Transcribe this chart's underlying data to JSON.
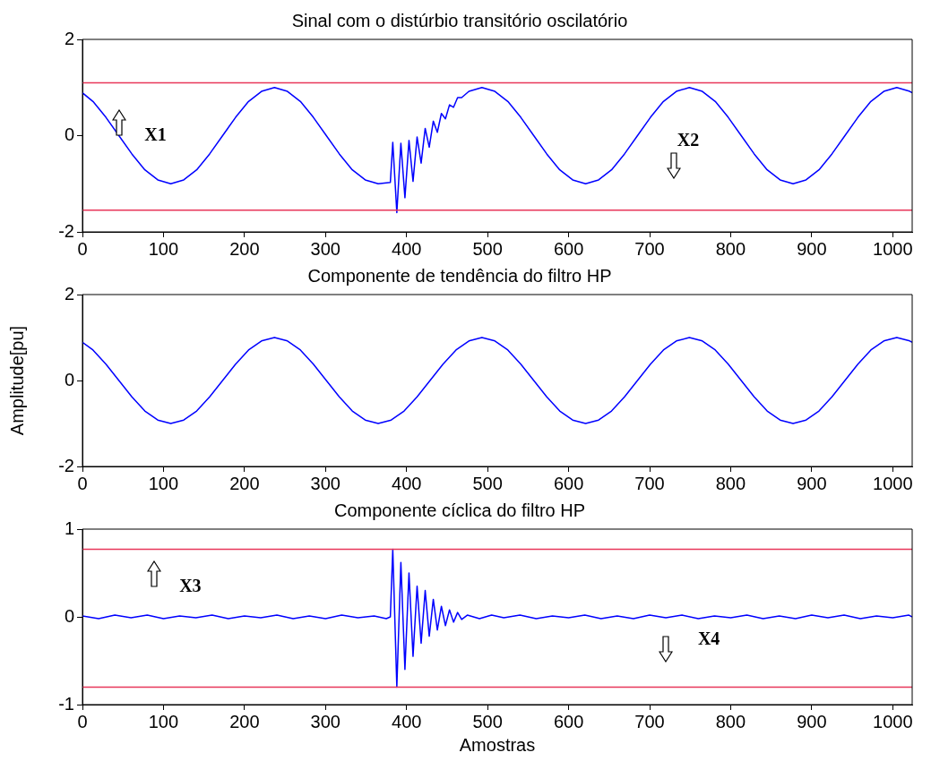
{
  "chart_data": [
    {
      "type": "line",
      "title": "Sinal com o distúrbio transitório oscilatório",
      "xlim": [
        0,
        1024
      ],
      "xticks": [
        0,
        100,
        200,
        300,
        400,
        500,
        600,
        700,
        800,
        900,
        1000
      ],
      "ylim": [
        -2,
        2
      ],
      "yticks": [
        -2,
        0,
        2
      ],
      "series": [
        {
          "color": "#0000ff",
          "x": [
            0,
            13,
            29,
            45,
            61,
            77,
            93,
            109,
            125,
            141,
            157,
            173,
            189,
            205,
            221,
            237,
            253,
            269,
            285,
            301,
            317,
            333,
            349,
            365,
            380,
            383,
            388,
            393,
            398,
            403,
            408,
            413,
            418,
            423,
            428,
            433,
            438,
            443,
            448,
            453,
            458,
            463,
            468,
            477,
            493,
            509,
            525,
            541,
            557,
            573,
            589,
            605,
            621,
            637,
            653,
            669,
            685,
            701,
            717,
            733,
            749,
            765,
            781,
            797,
            813,
            829,
            845,
            861,
            877,
            893,
            909,
            925,
            941,
            957,
            973,
            989,
            1005,
            1021,
            1024
          ],
          "values": [
            0.89,
            0.71,
            0.38,
            0,
            -0.38,
            -0.71,
            -0.92,
            -1,
            -0.92,
            -0.71,
            -0.38,
            0,
            0.38,
            0.71,
            0.92,
            1,
            0.92,
            0.71,
            0.38,
            0,
            -0.38,
            -0.71,
            -0.92,
            -1,
            -0.97,
            -0.14,
            -1.6,
            -0.16,
            -1.29,
            -0.1,
            -0.95,
            -0.03,
            -0.57,
            0.15,
            -0.24,
            0.3,
            0.07,
            0.46,
            0.35,
            0.64,
            0.59,
            0.79,
            0.79,
            0.92,
            1,
            0.92,
            0.71,
            0.38,
            0,
            -0.38,
            -0.71,
            -0.92,
            -1,
            -0.92,
            -0.71,
            -0.38,
            0,
            0.38,
            0.71,
            0.92,
            1,
            0.92,
            0.71,
            0.38,
            0,
            -0.38,
            -0.71,
            -0.92,
            -1,
            -0.92,
            -0.71,
            -0.38,
            0,
            0.38,
            0.71,
            0.92,
            1,
            0.92,
            0.89
          ]
        }
      ],
      "ref_lines": [
        {
          "axis": "y",
          "value": 1.1,
          "color": "#e8375a"
        },
        {
          "axis": "y",
          "value": -1.55,
          "color": "#e8375a"
        }
      ],
      "annotations": [
        "X1",
        "X2"
      ]
    },
    {
      "type": "line",
      "title": "Componente de tendência do filtro HP",
      "ylabel": "Amplitude[pu]",
      "xlim": [
        0,
        1024
      ],
      "xticks": [
        0,
        100,
        200,
        300,
        400,
        500,
        600,
        700,
        800,
        900,
        1000
      ],
      "ylim": [
        -2,
        2
      ],
      "yticks": [
        -2,
        0,
        2
      ],
      "series": [
        {
          "color": "#0000ff",
          "x": [
            0,
            13,
            29,
            45,
            61,
            77,
            93,
            109,
            125,
            141,
            157,
            173,
            189,
            205,
            221,
            237,
            253,
            269,
            285,
            301,
            317,
            333,
            349,
            365,
            381,
            397,
            413,
            429,
            445,
            461,
            477,
            493,
            509,
            525,
            541,
            557,
            573,
            589,
            605,
            621,
            637,
            653,
            669,
            685,
            701,
            717,
            733,
            749,
            765,
            781,
            797,
            813,
            829,
            845,
            861,
            877,
            893,
            909,
            925,
            941,
            957,
            973,
            989,
            1005,
            1021,
            1024
          ],
          "values": [
            0.89,
            0.71,
            0.38,
            0,
            -0.38,
            -0.71,
            -0.92,
            -1,
            -0.92,
            -0.71,
            -0.38,
            0,
            0.38,
            0.71,
            0.92,
            1,
            0.92,
            0.71,
            0.38,
            0,
            -0.38,
            -0.71,
            -0.92,
            -1,
            -0.92,
            -0.71,
            -0.38,
            0,
            0.38,
            0.71,
            0.92,
            1,
            0.92,
            0.71,
            0.38,
            0,
            -0.38,
            -0.71,
            -0.92,
            -1,
            -0.92,
            -0.71,
            -0.38,
            0,
            0.38,
            0.71,
            0.92,
            1,
            0.92,
            0.71,
            0.38,
            0,
            -0.38,
            -0.71,
            -0.92,
            -1,
            -0.92,
            -0.71,
            -0.38,
            0,
            0.38,
            0.71,
            0.92,
            1,
            0.92,
            0.89
          ]
        }
      ]
    },
    {
      "type": "line",
      "title": "Componente cíclica do filtro HP",
      "xlabel": "Amostras",
      "xlim": [
        0,
        1024
      ],
      "xticks": [
        0,
        100,
        200,
        300,
        400,
        500,
        600,
        700,
        800,
        900,
        1000
      ],
      "ylim": [
        -1,
        1
      ],
      "yticks": [
        -1,
        0,
        1
      ],
      "series": [
        {
          "color": "#0000ff",
          "x": [
            0,
            20,
            40,
            60,
            80,
            100,
            120,
            140,
            160,
            180,
            200,
            220,
            240,
            260,
            280,
            300,
            320,
            340,
            360,
            375,
            380,
            383,
            388,
            393,
            398,
            403,
            408,
            413,
            418,
            423,
            428,
            433,
            438,
            443,
            448,
            453,
            458,
            463,
            468,
            475,
            490,
            505,
            520,
            540,
            560,
            580,
            600,
            620,
            640,
            660,
            680,
            700,
            720,
            740,
            760,
            780,
            800,
            820,
            840,
            860,
            880,
            900,
            920,
            940,
            960,
            980,
            1000,
            1020,
            1024
          ],
          "values": [
            0.01,
            -0.02,
            0.02,
            -0.01,
            0.02,
            -0.02,
            0.01,
            -0.01,
            0.02,
            -0.02,
            0.01,
            -0.01,
            0.02,
            -0.02,
            0.01,
            -0.02,
            0.02,
            -0.01,
            0.01,
            -0.02,
            0,
            0.77,
            -0.8,
            0.62,
            -0.6,
            0.5,
            -0.45,
            0.35,
            -0.3,
            0.3,
            -0.22,
            0.2,
            -0.15,
            0.12,
            -0.1,
            0.08,
            -0.06,
            0.05,
            -0.03,
            0.02,
            -0.02,
            0.02,
            -0.01,
            0.02,
            -0.02,
            0.01,
            -0.01,
            0.02,
            -0.02,
            0.01,
            -0.02,
            0.02,
            -0.01,
            0.02,
            -0.02,
            0.01,
            -0.01,
            0.02,
            -0.02,
            0.01,
            -0.02,
            0.02,
            -0.01,
            0.02,
            -0.02,
            0.01,
            -0.01,
            0.02,
            0
          ]
        }
      ],
      "ref_lines": [
        {
          "axis": "y",
          "value": 0.77,
          "color": "#e8375a"
        },
        {
          "axis": "y",
          "value": -0.8,
          "color": "#e8375a"
        }
      ],
      "annotations": [
        "X3",
        "X4"
      ]
    }
  ]
}
